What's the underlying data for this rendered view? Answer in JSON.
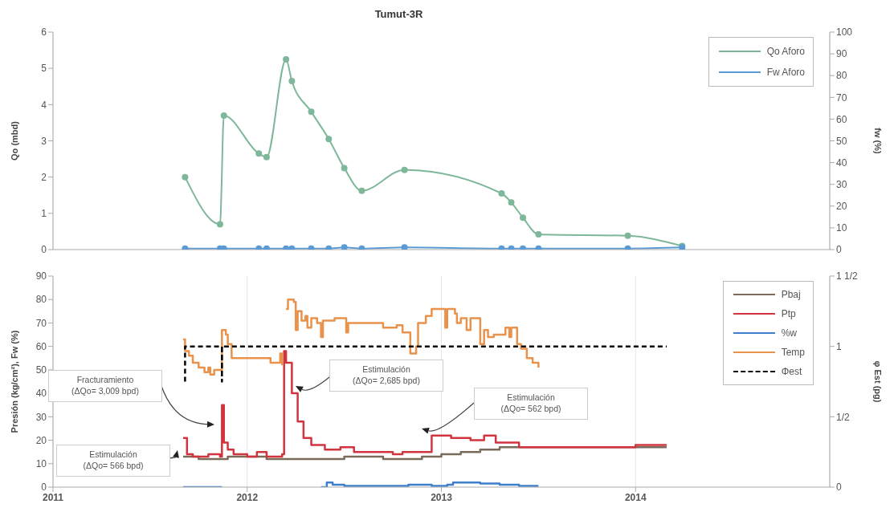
{
  "chart_data": [
    {
      "type": "line",
      "title": "Tumut-3R",
      "ylabel": "Qo (mbd)",
      "y2label": "fw (%)",
      "xlim": [
        2011,
        2015
      ],
      "xticks": [
        2011,
        2012,
        2013,
        2014
      ],
      "ylim": [
        0,
        6
      ],
      "yticks": [
        0,
        1,
        2,
        3,
        4,
        5,
        6
      ],
      "y2lim": [
        0,
        100
      ],
      "y2ticks": [
        0,
        10,
        20,
        30,
        40,
        50,
        60,
        70,
        80,
        90,
        100
      ],
      "grid": "x",
      "legend": "top right",
      "marker": "circle",
      "tick_labels": "y",
      "series": [
        {
          "name": "Qo Aforo",
          "color": "#7fb79a",
          "x": [
            2011.68,
            2011.86,
            2011.88,
            2012.06,
            2012.1,
            2012.2,
            2012.23,
            2012.33,
            2012.42,
            2012.5,
            2012.59,
            2012.81,
            2013.31,
            2013.36,
            2013.42,
            2013.5,
            2013.96,
            2014.24
          ],
          "values": [
            2.0,
            0.7,
            3.7,
            2.65,
            2.55,
            5.25,
            4.65,
            3.8,
            3.05,
            2.25,
            1.62,
            2.2,
            1.55,
            1.3,
            0.88,
            0.42,
            0.38,
            0.1
          ]
        },
        {
          "name": "Fw Aforo",
          "color": "#5b9bd5",
          "axis": "y2",
          "x": [
            2011.68,
            2011.86,
            2011.88,
            2012.06,
            2012.1,
            2012.2,
            2012.23,
            2012.33,
            2012.42,
            2012.5,
            2012.59,
            2012.81,
            2013.31,
            2013.36,
            2013.42,
            2013.5,
            2013.96,
            2014.24
          ],
          "values": [
            0.5,
            0.5,
            0.5,
            0.5,
            0.5,
            0.5,
            0.5,
            0.5,
            0.5,
            1,
            0.5,
            1,
            0.5,
            0.5,
            0.5,
            0.5,
            0.5,
            1
          ]
        }
      ]
    },
    {
      "type": "step",
      "ylabel": "Presión (kg/cm²), Fw (%)",
      "y2label": "φ Est (pg)",
      "xlim": [
        2011,
        2015
      ],
      "xticks": [
        2011,
        2012,
        2013,
        2014
      ],
      "ylim": [
        0,
        90
      ],
      "yticks": [
        0,
        10,
        20,
        30,
        40,
        50,
        60,
        70,
        80,
        90
      ],
      "y2lim": [
        0,
        1.5
      ],
      "y2ticks": [
        0,
        {
          "value": 0.5,
          "label": "1/2"
        },
        1,
        {
          "value": 1.5,
          "label": "1 1/2"
        }
      ],
      "grid": "x",
      "legend": "top right",
      "series": [
        {
          "name": "Pbaj",
          "color": "#7b6b5a",
          "x": [
            2011.67,
            2011.75,
            2011.9,
            2012.1,
            2012.3,
            2012.5,
            2012.7,
            2012.9,
            2013.0,
            2013.1,
            2013.2,
            2013.3,
            2013.4,
            2013.7,
            2014.0,
            2014.16
          ],
          "values": [
            13,
            12,
            13,
            12,
            12,
            13,
            12,
            13,
            14,
            15,
            16,
            17,
            17,
            17,
            17,
            17
          ]
        },
        {
          "name": "Ptp",
          "color": "#d2343f",
          "x": [
            2011.67,
            2011.69,
            2011.72,
            2011.8,
            2011.86,
            2011.87,
            2011.88,
            2011.9,
            2011.93,
            2012.0,
            2012.05,
            2012.1,
            2012.18,
            2012.19,
            2012.2,
            2012.23,
            2012.26,
            2012.29,
            2012.33,
            2012.4,
            2012.48,
            2012.55,
            2012.75,
            2012.8,
            2012.95,
            2013.05,
            2013.15,
            2013.22,
            2013.28,
            2013.4,
            2013.7,
            2014.0,
            2014.16
          ],
          "values": [
            21,
            14,
            13,
            14,
            13,
            35,
            19,
            16,
            14,
            13,
            15,
            13,
            14,
            58,
            53,
            40,
            28,
            21,
            18,
            16,
            17,
            15,
            14,
            15,
            22,
            21,
            20,
            22,
            19,
            17,
            17,
            18,
            18
          ]
        },
        {
          "name": "%w",
          "color": "#3d7fcc",
          "x": [
            2011.67,
            2011.87,
            2011.88,
            2012.38,
            2012.41,
            2012.44,
            2012.5,
            2012.83,
            2012.95,
            2013.03,
            2013.06,
            2013.2,
            2013.3,
            2013.4,
            2013.5
          ],
          "values": [
            0,
            0,
            null,
            0,
            2,
            1,
            0.5,
            1,
            0.5,
            1,
            2,
            1.5,
            1,
            0.5,
            0.5
          ]
        },
        {
          "name": "Temp",
          "color": "#e8924c",
          "x": [
            2011.67,
            2011.68,
            2011.7,
            2011.72,
            2011.75,
            2011.78,
            2011.8,
            2011.81,
            2011.83,
            2011.86,
            2011.87,
            2011.89,
            2011.9,
            2011.92,
            2012.12,
            2012.17,
            2012.18,
            2012.19,
            2012.2,
            2012.21,
            2012.24,
            2012.25,
            2012.26,
            2012.28,
            2012.3,
            2012.31,
            2012.33,
            2012.36,
            2012.38,
            2012.39,
            2012.45,
            2012.51,
            2012.52,
            2012.7,
            2012.77,
            2012.8,
            2012.84,
            2012.87,
            2012.88,
            2012.92,
            2012.95,
            2013.02,
            2013.03,
            2013.07,
            2013.08,
            2013.1,
            2013.13,
            2013.15,
            2013.2,
            2013.22,
            2013.24,
            2013.27,
            2013.33,
            2013.35,
            2013.36,
            2013.39,
            2013.41,
            2013.44,
            2013.47,
            2013.5
          ],
          "values": [
            63,
            58,
            56,
            53,
            51,
            49,
            51,
            48,
            50,
            50,
            67,
            65,
            61,
            55,
            53,
            57,
            52,
            null,
            76,
            80,
            79,
            67,
            75,
            71,
            73,
            68,
            72,
            70,
            64,
            71,
            72,
            66,
            70,
            68,
            69,
            66,
            57,
            60,
            70,
            73,
            76,
            68,
            76,
            74,
            70,
            72,
            67,
            72,
            61,
            67,
            64,
            65,
            68,
            64,
            68,
            61,
            59,
            55,
            53,
            51
          ]
        },
        {
          "name": "Φest",
          "color": "#000000",
          "type": "line",
          "axis": "y2",
          "line_style": "dashed",
          "x": [
            2011.68,
            2011.68,
            2011.87,
            2011.87,
            2011.87,
            2014.16
          ],
          "values": [
            0.75,
            1,
            1,
            0.75,
            1,
            1
          ]
        }
      ],
      "annotations": [
        "Fracturamiento\n(ΔQo= 3,009 bpd)",
        "Estimulación\n(ΔQo= 2,685 bpd)",
        "Estimulación\n(ΔQo= 562 bpd)",
        "Estimulación\n(ΔQo= 566 bpd)"
      ]
    }
  ]
}
